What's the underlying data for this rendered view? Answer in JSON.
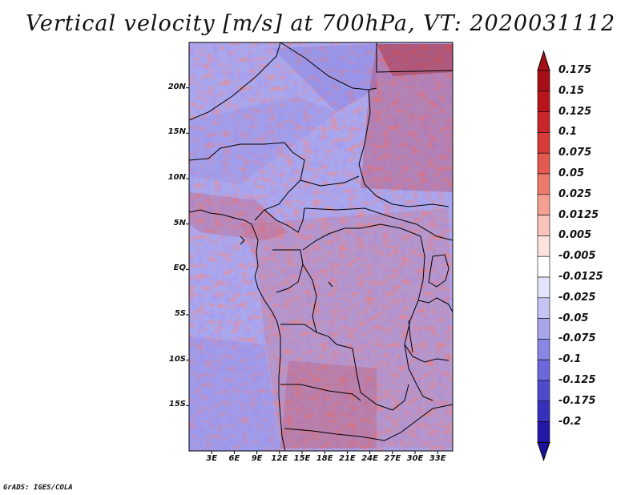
{
  "title": "Vertical velocity [m/s] at 700hPa, VT: 2020031112",
  "credit": "GrADS: IGES/COLA",
  "map": {
    "lat_labels": [
      {
        "lat": 20,
        "label": "20N"
      },
      {
        "lat": 15,
        "label": "15N"
      },
      {
        "lat": 10,
        "label": "10N"
      },
      {
        "lat": 5,
        "label": "5N"
      },
      {
        "lat": 0,
        "label": "EQ"
      },
      {
        "lat": -5,
        "label": "5S"
      },
      {
        "lat": -10,
        "label": "10S"
      },
      {
        "lat": -15,
        "label": "15S"
      }
    ],
    "lon_labels": [
      {
        "lon": 3,
        "label": "3E"
      },
      {
        "lon": 6,
        "label": "6E"
      },
      {
        "lon": 9,
        "label": "9E"
      },
      {
        "lon": 12,
        "label": "12E"
      },
      {
        "lon": 15,
        "label": "15E"
      },
      {
        "lon": 18,
        "label": "18E"
      },
      {
        "lon": 21,
        "label": "21E"
      },
      {
        "lon": 24,
        "label": "24E"
      },
      {
        "lon": 27,
        "label": "27E"
      },
      {
        "lon": 30,
        "label": "30E"
      },
      {
        "lon": 33,
        "label": "33E"
      }
    ],
    "lon_range": [
      0,
      35
    ],
    "lat_range": [
      -20,
      25
    ]
  },
  "colorbar": {
    "levels": [
      {
        "label": "0.175",
        "color": "#a50f15"
      },
      {
        "label": "0.15",
        "color": "#b7141c"
      },
      {
        "label": "0.125",
        "color": "#c8262a"
      },
      {
        "label": "0.1",
        "color": "#d73b3a"
      },
      {
        "label": "0.075",
        "color": "#e2594f"
      },
      {
        "label": "0.05",
        "color": "#ec7a6b"
      },
      {
        "label": "0.025",
        "color": "#f59f93"
      },
      {
        "label": "0.0125",
        "color": "#f9c4bb"
      },
      {
        "label": "0.005",
        "color": "#fde3de"
      },
      {
        "label": "-0.005",
        "color": "#ffffff"
      },
      {
        "label": "-0.0125",
        "color": "#e4e3fb"
      },
      {
        "label": "-0.025",
        "color": "#c6c4f4"
      },
      {
        "label": "-0.05",
        "color": "#a8a5ec"
      },
      {
        "label": "-0.075",
        "color": "#8a86e3"
      },
      {
        "label": "-0.1",
        "color": "#6d68d9"
      },
      {
        "label": "-0.125",
        "color": "#4f4acc"
      },
      {
        "label": "-0.175",
        "color": "#3730bb"
      },
      {
        "label": "-0.2",
        "color": "#2418a5"
      }
    ],
    "top_color": "#a50f15",
    "bottom_color": "#1e0f9a"
  }
}
